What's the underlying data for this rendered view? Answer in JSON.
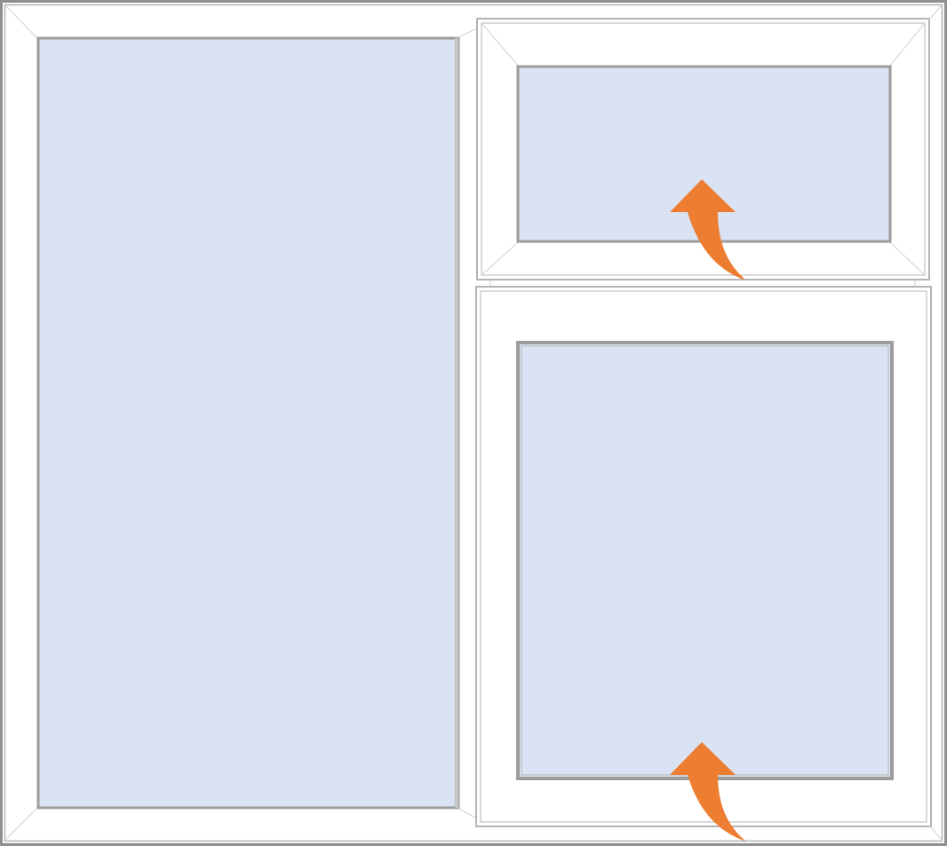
{
  "colors": {
    "frame_fill": "#ffffff",
    "frame_stroke": "#8f8f8f",
    "frame_stroke_light": "#b4b4b4",
    "miter_line": "#d2d2d2",
    "glass_fill": "#dae3f3",
    "glass_stroke": "#9c9c9c",
    "arrow_fill": "#ed7d31"
  },
  "panes": [
    {
      "id": "left-fixed-pane",
      "type": "fixed"
    },
    {
      "id": "top-right-sash",
      "type": "top-hung-opening",
      "arrow_icon": "curved-up-arrow-icon"
    },
    {
      "id": "bottom-right-sash",
      "type": "bottom-hung-opening",
      "arrow_icon": "curved-up-arrow-icon"
    }
  ]
}
